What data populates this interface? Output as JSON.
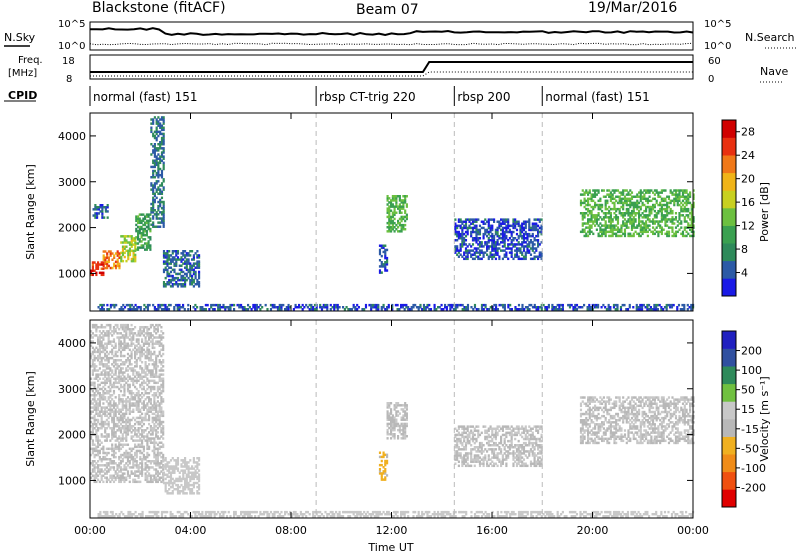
{
  "header": {
    "radar_title": "Blackstone (fitACF)",
    "beam_title": "Beam 07",
    "date": "19/Mar/2016"
  },
  "summary_panel": {
    "nsky_label": "N.Sky",
    "nsky_ticks": [
      "10^5",
      "10^0"
    ],
    "nsearch_label": "N.Search",
    "right_ticks_top": [
      "10^5",
      "10^0"
    ],
    "freq_label_1": "Freq.",
    "freq_label_2": "[MHz]",
    "freq_ticks": [
      "18",
      "8"
    ],
    "nave_label": "Nave",
    "nave_ticks": [
      "60",
      "0"
    ],
    "cpid_label": "CPID"
  },
  "cpid_segments": [
    {
      "label": "normal (fast) 151",
      "start_hour": 0.0,
      "end_hour": 9.0
    },
    {
      "label": "rbsp CT-trig 220",
      "start_hour": 9.0,
      "end_hour": 14.5
    },
    {
      "label": "rbsp 200",
      "start_hour": 14.5,
      "end_hour": 18.0
    },
    {
      "label": "normal (fast) 151",
      "start_hour": 18.0,
      "end_hour": 24.0
    }
  ],
  "colors": {
    "power": [
      "#1a1ae6",
      "#2c5aa6",
      "#2e8a5a",
      "#3aa050",
      "#6cc040",
      "#c8d020",
      "#f0b418",
      "#f07818",
      "#e83010",
      "#d00000"
    ],
    "velocity": [
      "#e00000",
      "#f05010",
      "#f08c18",
      "#f0b020",
      "#b8b8b8",
      "#c8c8c8",
      "#70c040",
      "#2e8a5a",
      "#3050a0",
      "#2020c0"
    ],
    "frame": "#000000",
    "dashed": "#bbbbbb"
  },
  "chart_data": [
    {
      "type": "heatmap",
      "title": "",
      "xlabel": "",
      "ylabel": "Slant Range [km]",
      "x_ticks": [
        "00:00",
        "04:00",
        "08:00",
        "12:00",
        "16:00",
        "20:00",
        "00:00"
      ],
      "xlim_hours": [
        0,
        24
      ],
      "ylim_km": [
        180,
        4500
      ],
      "y_ticks": [
        "1000",
        "2000",
        "3000",
        "4000"
      ],
      "colorbar_label": "Power [dB]",
      "colorbar_ticks": [
        "4",
        "8",
        "12",
        "16",
        "20",
        "24",
        "28"
      ],
      "colorbar_range": [
        0,
        30
      ],
      "echo_regions": [
        {
          "t0": 0.0,
          "t1": 0.5,
          "r0": 950,
          "r1": 1250,
          "value": 26
        },
        {
          "t0": 0.5,
          "t1": 1.2,
          "r0": 1100,
          "r1": 1500,
          "value": 22
        },
        {
          "t0": 1.2,
          "t1": 1.8,
          "r0": 1250,
          "r1": 1800,
          "value": 16
        },
        {
          "t0": 1.8,
          "t1": 2.4,
          "r0": 1500,
          "r1": 2300,
          "value": 10
        },
        {
          "t0": 2.4,
          "t1": 2.9,
          "r0": 2000,
          "r1": 4400,
          "value": 6
        },
        {
          "t0": 0.1,
          "t1": 0.7,
          "r0": 2200,
          "r1": 2500,
          "value": 5
        },
        {
          "t0": 2.9,
          "t1": 4.3,
          "r0": 700,
          "r1": 1500,
          "value": 5
        },
        {
          "t0": 0.3,
          "t1": 24.0,
          "r0": 200,
          "r1": 320,
          "value": 4
        },
        {
          "t0": 11.8,
          "t1": 12.6,
          "r0": 1900,
          "r1": 2700,
          "value": 12
        },
        {
          "t0": 11.5,
          "t1": 11.8,
          "r0": 1000,
          "r1": 1600,
          "value": 4
        },
        {
          "t0": 14.5,
          "t1": 18.0,
          "r0": 1300,
          "r1": 2200,
          "value": 4
        },
        {
          "t0": 19.5,
          "t1": 24.0,
          "r0": 1800,
          "r1": 2800,
          "value": 12
        }
      ]
    },
    {
      "type": "heatmap",
      "title": "",
      "xlabel": "Time UT",
      "ylabel": "Slant Range [km]",
      "x_ticks": [
        "00:00",
        "04:00",
        "08:00",
        "12:00",
        "16:00",
        "20:00",
        "00:00"
      ],
      "xlim_hours": [
        0,
        24
      ],
      "ylim_km": [
        180,
        4500
      ],
      "y_ticks": [
        "1000",
        "2000",
        "3000",
        "4000"
      ],
      "colorbar_label": "Velocity [m s⁻¹]",
      "colorbar_ticks": [
        "200",
        "100",
        "50",
        "15",
        "-15",
        "-50",
        "-100",
        "-200"
      ],
      "colorbar_range": [
        -250,
        250
      ],
      "echo_regions": [
        {
          "t0": 0.0,
          "t1": 2.9,
          "r0": 950,
          "r1": 4400,
          "value": 0
        },
        {
          "t0": 2.9,
          "t1": 4.3,
          "r0": 700,
          "r1": 1500,
          "value": 30
        },
        {
          "t0": 0.3,
          "t1": 24.0,
          "r0": 200,
          "r1": 320,
          "value": 20
        },
        {
          "t0": 11.8,
          "t1": 12.6,
          "r0": 1900,
          "r1": 2700,
          "value": 0
        },
        {
          "t0": 11.5,
          "t1": 11.8,
          "r0": 1000,
          "r1": 1600,
          "value": -60
        },
        {
          "t0": 14.5,
          "t1": 18.0,
          "r0": 1300,
          "r1": 2200,
          "value": 0
        },
        {
          "t0": 19.5,
          "t1": 24.0,
          "r0": 1800,
          "r1": 2800,
          "value": 0
        }
      ]
    }
  ]
}
